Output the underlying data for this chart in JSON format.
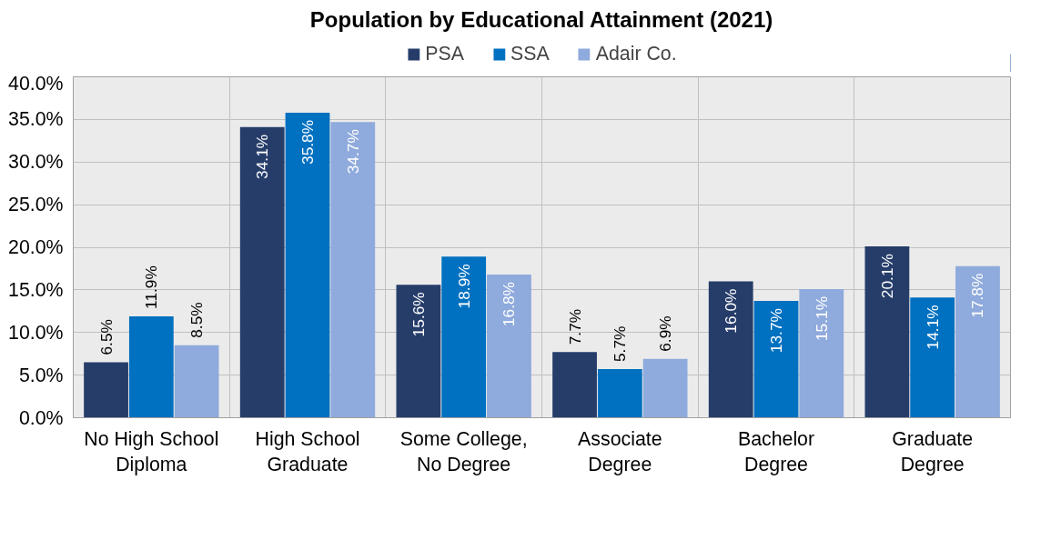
{
  "chart_data": {
    "type": "bar",
    "title": "Population by Educational Attainment (2021)",
    "categories": [
      "No High School Diploma",
      "High School Graduate",
      "Some College, No Degree",
      "Associate Degree",
      "Bachelor Degree",
      "Graduate Degree"
    ],
    "series": [
      {
        "name": "PSA",
        "color": "#263d6a",
        "values": [
          6.5,
          34.1,
          15.6,
          7.7,
          16.0,
          20.1
        ],
        "value_labels": [
          "6.5%",
          "34.1%",
          "15.6%",
          "7.7%",
          "16.0%",
          "20.1%"
        ]
      },
      {
        "name": "SSA",
        "color": "#0070c0",
        "values": [
          11.9,
          35.8,
          18.9,
          5.7,
          13.7,
          14.1
        ],
        "value_labels": [
          "11.9%",
          "35.8%",
          "18.9%",
          "5.7%",
          "13.7%",
          "14.1%"
        ]
      },
      {
        "name": "Adair Co.",
        "color": "#8faadc",
        "values": [
          8.5,
          34.7,
          16.8,
          6.9,
          15.1,
          17.8
        ],
        "value_labels": [
          "8.5%",
          "34.7%",
          "16.8%",
          "6.9%",
          "15.1%",
          "17.8%"
        ]
      }
    ],
    "ylim": [
      0,
      40
    ],
    "yticks": [
      {
        "value": 0,
        "label": "0.0%"
      },
      {
        "value": 5,
        "label": "5.0%"
      },
      {
        "value": 10,
        "label": "10.0%"
      },
      {
        "value": 15,
        "label": "15.0%"
      },
      {
        "value": 20,
        "label": "20.0%"
      },
      {
        "value": 25,
        "label": "25.0%"
      },
      {
        "value": 30,
        "label": "30.0%"
      },
      {
        "value": 35,
        "label": "35.0%"
      },
      {
        "value": 40,
        "label": "40.0%"
      }
    ],
    "grid": true,
    "legend": "top"
  }
}
